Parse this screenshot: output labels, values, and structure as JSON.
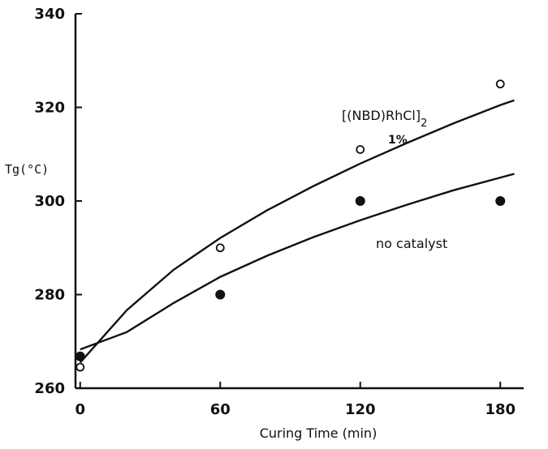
{
  "chart_data": {
    "type": "scatter",
    "title": "",
    "xlabel": "Curing Time (min)",
    "ylabel": "Tg(°C)",
    "xlim": [
      -2,
      190
    ],
    "ylim": [
      260,
      340
    ],
    "x_ticks": [
      0,
      60,
      120,
      180
    ],
    "y_ticks": [
      260,
      280,
      300,
      320,
      340
    ],
    "grid": false,
    "series": [
      {
        "name": "[(NBD)RhCl]2 1%",
        "marker": "open-circle",
        "points": [
          [
            0,
            264.5
          ],
          [
            60,
            290
          ],
          [
            120,
            311
          ],
          [
            180,
            325
          ]
        ],
        "fit": [
          [
            0,
            265.5
          ],
          [
            20,
            276.7
          ],
          [
            40,
            285.3
          ],
          [
            60,
            292.1
          ],
          [
            80,
            298.0
          ],
          [
            100,
            303.2
          ],
          [
            120,
            308.0
          ],
          [
            140,
            312.4
          ],
          [
            160,
            316.6
          ],
          [
            180,
            320.5
          ],
          [
            186,
            321.5
          ]
        ]
      },
      {
        "name": "no catalyst",
        "marker": "filled-circle",
        "points": [
          [
            0,
            266.8
          ],
          [
            60,
            280
          ],
          [
            120,
            300
          ],
          [
            180,
            300
          ]
        ],
        "fit": [
          [
            0,
            268.3
          ],
          [
            20,
            272.0
          ],
          [
            40,
            278.2
          ],
          [
            60,
            283.8
          ],
          [
            80,
            288.3
          ],
          [
            100,
            292.3
          ],
          [
            120,
            295.9
          ],
          [
            140,
            299.2
          ],
          [
            160,
            302.3
          ],
          [
            180,
            305.0
          ],
          [
            186,
            305.8
          ]
        ]
      }
    ],
    "annotations": {
      "catalyst_main": "[(NBD)RhCl]",
      "catalyst_sub": "2",
      "catalyst_pct": "1%",
      "no_catalyst": "no catalyst"
    }
  }
}
